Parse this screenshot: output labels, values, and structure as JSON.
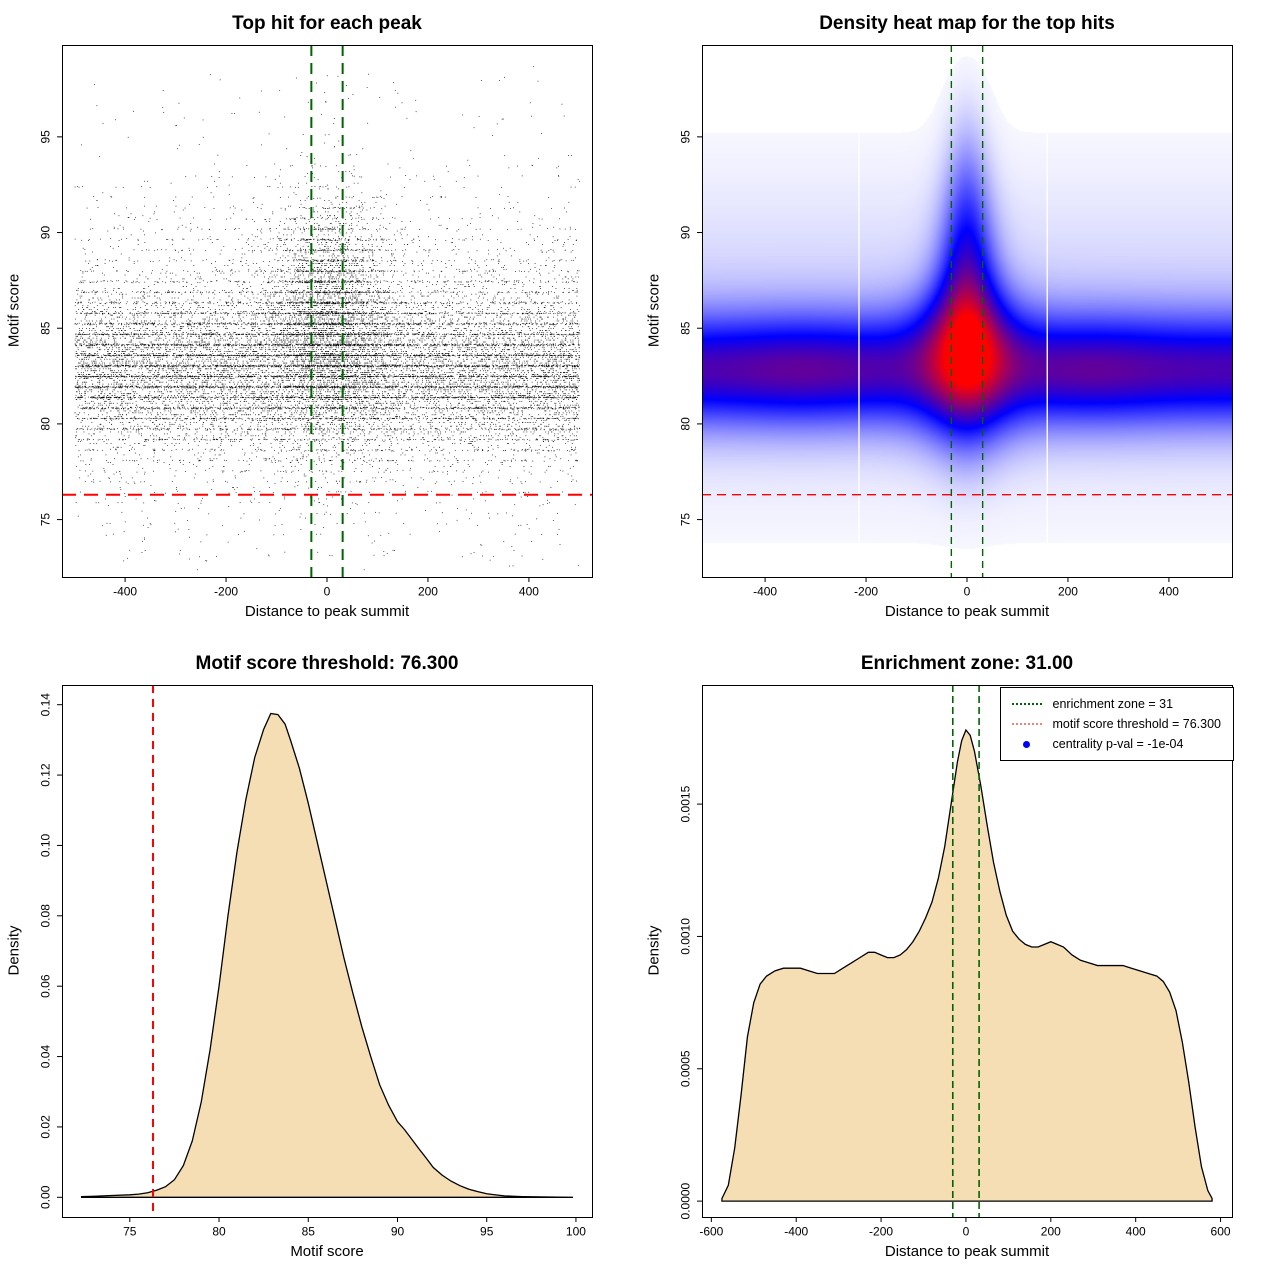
{
  "figure": {
    "background": "#FFFFFF"
  },
  "chart_data": [
    {
      "id": "top-hit-scatter",
      "type": "scatter",
      "title": "Top hit for each peak",
      "xlabel": "Distance to peak summit",
      "ylabel": "Motif score",
      "xlim": [
        -525,
        525
      ],
      "ylim": [
        72.0,
        99.8
      ],
      "xticks": [
        -400,
        -200,
        0,
        200,
        400
      ],
      "xtick_labels": [
        "-400",
        "-200",
        "0",
        "200",
        "400"
      ],
      "yticks": [
        75,
        80,
        85,
        90,
        95
      ],
      "ytick_labels": [
        "75",
        "80",
        "85",
        "90",
        "95"
      ],
      "grid": false,
      "point_color": "#000000",
      "n_points": 22000,
      "seed": 77,
      "central_fraction": 0.2,
      "center_x_mean": 3,
      "center_x_sd": 62,
      "center_y_mean": 85.6,
      "center_y_sd": 3.1,
      "bg_x_range": [
        -500,
        500
      ],
      "bg_y_mean": 82.85,
      "bg_y_sd": 2.05,
      "bg_tail_frac": 0.22,
      "bg_tail_mean": 84.0,
      "bg_tail_sd": 4.2,
      "band_snap_frac": 0.42,
      "band_spacing": 0.55,
      "y_quantum": 0.1,
      "low_outliers": {
        "frac": 0.004,
        "x_range": [
          -460,
          460
        ],
        "y_range": [
          72.8,
          77.3
        ]
      },
      "high_outliers": {
        "frac": 0.002,
        "x_range": [
          -480,
          480
        ],
        "y_range": [
          95.5,
          98.3
        ]
      },
      "y_clip": [
        72.3,
        99.4
      ],
      "enrichment_zone": [
        -31,
        31
      ],
      "motif_score_threshold": 76.3,
      "zone_line_color": "#006400",
      "threshold_line_color": "#FF0000"
    },
    {
      "id": "top-hits-density-heatmap",
      "type": "heatmap",
      "title": "Density heat map for the top hits",
      "xlabel": "Distance to peak summit",
      "ylabel": "Motif score",
      "xlim": [
        -525,
        525
      ],
      "ylim": [
        72.0,
        99.8
      ],
      "xticks": [
        -400,
        -200,
        0,
        200,
        400
      ],
      "xtick_labels": [
        "-400",
        "-200",
        "0",
        "200",
        "400"
      ],
      "yticks": [
        75,
        80,
        85,
        90,
        95
      ],
      "ytick_labels": [
        "75",
        "80",
        "85",
        "90",
        "95"
      ],
      "colormap": [
        "#FFFFFF",
        "#0000FF",
        "#FF0000"
      ],
      "density_model": {
        "band": {
          "amp": 0.55,
          "y_mean": 82.8,
          "y_sd": 2.0,
          "center_amp": 0.42,
          "center_x_sd": 55,
          "center_y_shift": 0.5,
          "sd_boost": 0.75,
          "center_sd_x": 70,
          "bumps": [
            {
              "x": -330,
              "amp": 0.05,
              "x_sd": 90
            },
            {
              "x": 250,
              "amp": 0.05,
              "x_sd": 90
            }
          ]
        },
        "tails": [
          {
            "y": 87.8,
            "amp": 0.28,
            "x_sd": 42,
            "y_sd": 2.8
          },
          {
            "y": 90.8,
            "amp": 0.16,
            "x_sd": 33,
            "y_sd": 2.6
          },
          {
            "y": 93.5,
            "amp": 0.09,
            "x_sd": 28,
            "y_sd": 2.8
          }
        ],
        "halo": {
          "amp": 0.1,
          "y_mean": 84.5,
          "y_sd": 5.5
        },
        "cutoff": 0.015
      },
      "white_lines": [
        -214,
        159
      ],
      "enrichment_zone": [
        -31,
        31
      ],
      "motif_score_threshold": 76.3,
      "zone_line_color": "#006400",
      "threshold_line_color": "#FF0000"
    },
    {
      "id": "motif-score-density",
      "type": "area",
      "title": "Motif score threshold: 76.300",
      "xlabel": "Motif score",
      "ylabel": "Density",
      "xlim": [
        71.2,
        100.9
      ],
      "ylim": [
        -0.0056,
        0.1456
      ],
      "xticks": [
        75,
        80,
        85,
        90,
        95,
        100
      ],
      "xtick_labels": [
        "75",
        "80",
        "85",
        "90",
        "95",
        "100"
      ],
      "yticks": [
        0.0,
        0.02,
        0.04,
        0.06,
        0.08,
        0.1,
        0.12,
        0.14
      ],
      "ytick_labels": [
        "0.00",
        "0.02",
        "0.04",
        "0.06",
        "0.08",
        "0.10",
        "0.12",
        "0.14"
      ],
      "fill_color": "#F5DEB3",
      "line_color": "#000000",
      "curve": {
        "x": [
          72.3,
          73,
          74,
          75,
          75.5,
          76,
          76.5,
          77,
          77.5,
          78,
          78.5,
          79,
          79.5,
          80,
          80.5,
          81,
          81.5,
          82,
          82.5,
          82.9,
          83.3,
          83.7,
          84,
          84.5,
          85,
          85.5,
          86,
          86.5,
          87,
          87.5,
          88,
          88.5,
          89,
          89.5,
          90,
          90.4,
          90.8,
          91.2,
          91.6,
          92,
          92.5,
          93,
          93.5,
          94,
          94.5,
          95,
          95.5,
          96,
          97,
          98,
          99,
          99.8
        ],
        "y": [
          0.0002,
          0.0003,
          0.0005,
          0.0007,
          0.0009,
          0.0013,
          0.002,
          0.003,
          0.005,
          0.009,
          0.016,
          0.027,
          0.042,
          0.06,
          0.08,
          0.098,
          0.113,
          0.125,
          0.133,
          0.1375,
          0.1372,
          0.1345,
          0.13,
          0.122,
          0.112,
          0.101,
          0.09,
          0.079,
          0.068,
          0.058,
          0.0485,
          0.04,
          0.032,
          0.0262,
          0.0215,
          0.0192,
          0.0165,
          0.0138,
          0.0112,
          0.0085,
          0.0063,
          0.0046,
          0.0033,
          0.0023,
          0.0016,
          0.001,
          0.0007,
          0.0004,
          0.0002,
          0.0001,
          5e-05,
          2e-05
        ]
      },
      "motif_score_threshold": 76.3,
      "threshold_line_color": "#FF0000"
    },
    {
      "id": "summit-distance-density",
      "type": "area",
      "title": "Enrichment zone: 31.00",
      "xlabel": "Distance to peak summit",
      "ylabel": "Density",
      "xlim": [
        -622,
        627
      ],
      "ylim": [
        -6e-05,
        0.00195
      ],
      "xticks": [
        -600,
        -400,
        -200,
        0,
        200,
        400,
        600
      ],
      "xtick_labels": [
        "-600",
        "-400",
        "-200",
        "0",
        "200",
        "400",
        "600"
      ],
      "yticks": [
        0.0,
        0.0005,
        0.001,
        0.0015
      ],
      "ytick_labels": [
        "0.0000",
        "0.0005",
        "0.0010",
        "0.0015"
      ],
      "fill_color": "#F5DEB3",
      "line_color": "#000000",
      "curve": {
        "x": [
          -575,
          -560,
          -545,
          -530,
          -515,
          -500,
          -485,
          -470,
          -450,
          -430,
          -410,
          -390,
          -370,
          -350,
          -330,
          -310,
          -290,
          -270,
          -250,
          -230,
          -215,
          -200,
          -185,
          -170,
          -155,
          -140,
          -125,
          -110,
          -95,
          -80,
          -65,
          -50,
          -35,
          -20,
          -10,
          0,
          10,
          20,
          35,
          50,
          65,
          80,
          95,
          110,
          125,
          140,
          155,
          170,
          185,
          200,
          215,
          230,
          250,
          270,
          290,
          310,
          330,
          350,
          370,
          390,
          410,
          430,
          450,
          465,
          480,
          495,
          510,
          525,
          540,
          555,
          570,
          580
        ],
        "y": [
          1e-05,
          6e-05,
          0.0002,
          0.0004,
          0.00062,
          0.00075,
          0.00082,
          0.00085,
          0.00087,
          0.00088,
          0.00088,
          0.00088,
          0.00087,
          0.00086,
          0.00086,
          0.00086,
          0.00088,
          0.0009,
          0.00092,
          0.00094,
          0.00094,
          0.00093,
          0.00092,
          0.00092,
          0.00093,
          0.00095,
          0.00098,
          0.00102,
          0.00107,
          0.00113,
          0.00122,
          0.00134,
          0.0015,
          0.00166,
          0.00174,
          0.00178,
          0.00176,
          0.0017,
          0.00157,
          0.00142,
          0.00128,
          0.00117,
          0.00108,
          0.00102,
          0.00099,
          0.00097,
          0.00096,
          0.00096,
          0.00097,
          0.00098,
          0.00097,
          0.00096,
          0.00093,
          0.00091,
          0.0009,
          0.00089,
          0.00089,
          0.00089,
          0.00089,
          0.00088,
          0.00087,
          0.00086,
          0.00085,
          0.00083,
          0.00079,
          0.00072,
          0.0006,
          0.00045,
          0.00028,
          0.00013,
          4e-05,
          1e-05
        ]
      },
      "enrichment_zone": [
        -31,
        31
      ],
      "zone_line_color": "#006400",
      "legend": [
        {
          "symbol": "dotted-line",
          "color": "#006400",
          "label": "enrichment zone = 31"
        },
        {
          "symbol": "dotted-line",
          "color": "#F08080",
          "label": "motif score threshold = 76.300"
        },
        {
          "symbol": "dot",
          "color": "#0000FF",
          "label": "centrality p-val = -1e-04"
        }
      ]
    }
  ]
}
